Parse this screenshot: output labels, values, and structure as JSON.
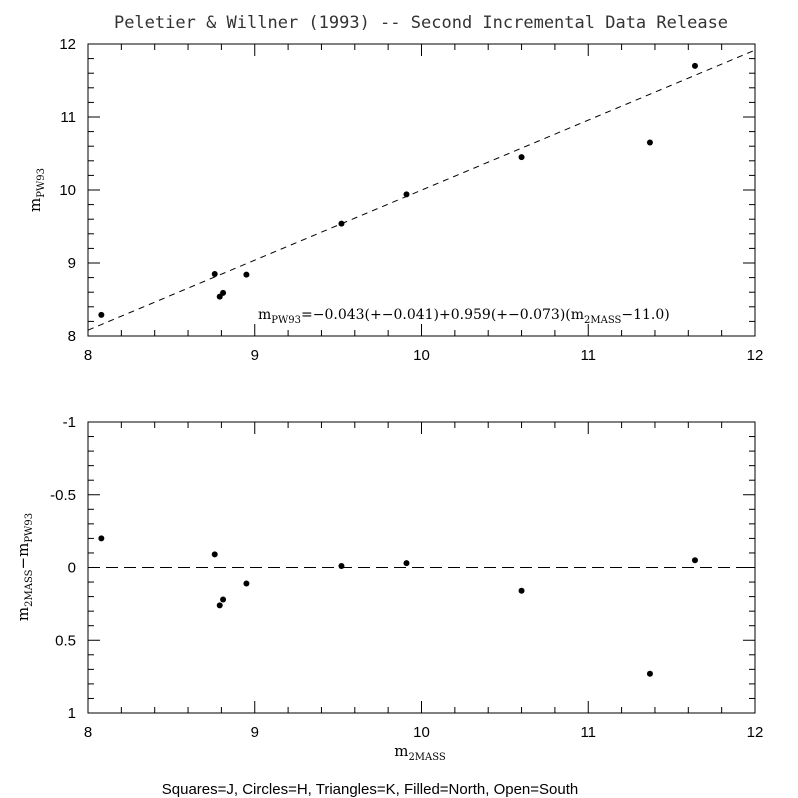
{
  "figure": {
    "title": "Peletier & Willner (1993) -- Second Incremental Data Release",
    "footer": "Squares=J, Circles=H, Triangles=K, Filled=North, Open=South"
  },
  "chart_data": [
    {
      "type": "scatter",
      "panel": "top",
      "xlim": [
        8,
        12
      ],
      "ylim": [
        8,
        12
      ],
      "x_ticks": [
        8,
        9,
        10,
        11,
        12
      ],
      "y_ticks": [
        8,
        9,
        10,
        11,
        12
      ],
      "x_tick_labels": [
        "8",
        "9",
        "10",
        "11",
        "12"
      ],
      "y_tick_labels": [
        "8",
        "9",
        "10",
        "11",
        "12"
      ],
      "ylabel": {
        "main": "m",
        "sub": "PW93"
      },
      "xlabel": null,
      "fit_line": {
        "intercept_at_11": -0.043,
        "slope": 0.959,
        "style": "dashed"
      },
      "equation": {
        "p1": "m",
        "s1": "PW93",
        "p2": "=−0.043(+−0.041)+0.959(+−0.073)(m",
        "s2": "2MASS",
        "p3": "−11.0)"
      },
      "marker": "filled-circle",
      "series": [
        {
          "points": [
            {
              "x": 8.08,
              "y": 8.29
            },
            {
              "x": 8.76,
              "y": 8.85
            },
            {
              "x": 8.79,
              "y": 8.54
            },
            {
              "x": 8.81,
              "y": 8.59
            },
            {
              "x": 8.95,
              "y": 8.84
            },
            {
              "x": 9.52,
              "y": 9.54
            },
            {
              "x": 9.91,
              "y": 9.94
            },
            {
              "x": 10.6,
              "y": 10.45
            },
            {
              "x": 11.37,
              "y": 10.65
            },
            {
              "x": 11.64,
              "y": 11.7
            }
          ]
        }
      ]
    },
    {
      "type": "scatter",
      "panel": "bottom",
      "xlim": [
        8,
        12
      ],
      "ylim": [
        1,
        -1
      ],
      "x_ticks": [
        8,
        9,
        10,
        11,
        12
      ],
      "y_ticks": [
        -1,
        -0.5,
        0,
        0.5,
        1
      ],
      "x_tick_labels": [
        "8",
        "9",
        "10",
        "11",
        "12"
      ],
      "y_tick_labels": [
        "-1",
        "-0.5",
        "0",
        "0.5",
        "1"
      ],
      "ylabel": {
        "p1": "m",
        "s1": "2MASS",
        "p2": "−m",
        "s2": "PW93"
      },
      "xlabel": {
        "main": "m",
        "sub": "2MASS"
      },
      "zero_line": {
        "y": 0,
        "style": "dashed"
      },
      "marker": "filled-circle",
      "series": [
        {
          "points": [
            {
              "x": 8.08,
              "y": -0.2
            },
            {
              "x": 8.76,
              "y": -0.09
            },
            {
              "x": 8.79,
              "y": 0.26
            },
            {
              "x": 8.81,
              "y": 0.22
            },
            {
              "x": 8.95,
              "y": 0.11
            },
            {
              "x": 9.52,
              "y": -0.01
            },
            {
              "x": 9.91,
              "y": -0.03
            },
            {
              "x": 10.6,
              "y": 0.16
            },
            {
              "x": 11.37,
              "y": 0.73
            },
            {
              "x": 11.64,
              "y": -0.05
            }
          ]
        }
      ]
    }
  ]
}
